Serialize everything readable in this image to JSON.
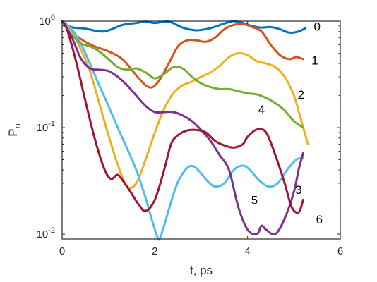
{
  "chart_data": {
    "type": "line",
    "xlabel": "t, ps",
    "ylabel": "P",
    "ylabel_subscript": "n",
    "xlim": [
      0,
      6
    ],
    "ylim": [
      0.009,
      1
    ],
    "yscale": "log",
    "grid": false,
    "x_ticks": [
      {
        "value": 0,
        "label": "0"
      },
      {
        "value": 2,
        "label": "2"
      },
      {
        "value": 4,
        "label": "4"
      },
      {
        "value": 6,
        "label": "6"
      }
    ],
    "y_ticks": [
      {
        "value": 1,
        "base": "10",
        "exp": "0"
      },
      {
        "value": 0.1,
        "base": "10",
        "exp": "-1"
      },
      {
        "value": 0.01,
        "base": "10",
        "exp": "-2"
      }
    ],
    "series": [
      {
        "name": "0",
        "color": "#0072bd",
        "label_at": [
          5.5,
          0.87
        ],
        "x": [
          0,
          0.2,
          0.5,
          0.9,
          1.3,
          1.6,
          1.8,
          2.0,
          2.3,
          2.6,
          2.9,
          3.2,
          3.5,
          3.7,
          3.9,
          4.1,
          4.3,
          4.5,
          4.7,
          4.9,
          5.1,
          5.25
        ],
        "y": [
          1.0,
          0.88,
          0.85,
          0.8,
          0.92,
          0.96,
          0.99,
          0.96,
          0.99,
          0.87,
          0.82,
          0.86,
          0.95,
          1.0,
          0.96,
          0.9,
          0.87,
          0.88,
          0.84,
          0.78,
          0.8,
          0.86
        ]
      },
      {
        "name": "1",
        "color": "#d95319",
        "label_at": [
          5.45,
          0.42
        ],
        "x": [
          0,
          0.2,
          0.4,
          0.7,
          1.0,
          1.3,
          1.6,
          1.8,
          1.95,
          2.1,
          2.3,
          2.5,
          2.7,
          2.9,
          3.1,
          3.3,
          3.5,
          3.7,
          3.9,
          4.1,
          4.3,
          4.5,
          4.7,
          4.9,
          5.05,
          5.2
        ],
        "y": [
          1.0,
          0.82,
          0.68,
          0.58,
          0.52,
          0.44,
          0.31,
          0.25,
          0.24,
          0.28,
          0.4,
          0.58,
          0.66,
          0.66,
          0.64,
          0.7,
          0.84,
          0.92,
          0.94,
          0.88,
          0.8,
          0.6,
          0.48,
          0.44,
          0.46,
          0.44
        ]
      },
      {
        "name": "2",
        "color": "#edb120",
        "label_at": [
          5.15,
          0.2
        ],
        "x": [
          0,
          0.2,
          0.4,
          0.6,
          0.8,
          1.0,
          1.2,
          1.4,
          1.6,
          1.8,
          2.0,
          2.2,
          2.4,
          2.6,
          2.8,
          3.0,
          3.2,
          3.4,
          3.6,
          3.8,
          4.0,
          4.2,
          4.4,
          4.6,
          4.8,
          5.0,
          5.15,
          5.3
        ],
        "y": [
          1.0,
          0.82,
          0.55,
          0.34,
          0.17,
          0.085,
          0.045,
          0.028,
          0.03,
          0.05,
          0.09,
          0.15,
          0.21,
          0.25,
          0.27,
          0.3,
          0.33,
          0.38,
          0.46,
          0.5,
          0.48,
          0.42,
          0.4,
          0.37,
          0.3,
          0.2,
          0.12,
          0.07
        ]
      },
      {
        "name": "3",
        "color": "#4dbeee",
        "label_at": [
          5.1,
          0.0255
        ],
        "x": [
          0,
          0.2,
          0.4,
          0.6,
          0.8,
          1.0,
          1.2,
          1.4,
          1.6,
          1.8,
          1.95,
          2.05,
          2.1,
          2.2,
          2.35,
          2.5,
          2.7,
          2.85,
          3.0,
          3.15,
          3.3,
          3.5,
          3.7,
          3.9,
          4.05,
          4.25,
          4.45,
          4.65,
          4.85,
          5.05,
          5.2
        ],
        "y": [
          1.0,
          0.85,
          0.62,
          0.4,
          0.25,
          0.16,
          0.1,
          0.064,
          0.04,
          0.022,
          0.013,
          0.0095,
          0.009,
          0.012,
          0.02,
          0.031,
          0.042,
          0.043,
          0.037,
          0.031,
          0.028,
          0.03,
          0.04,
          0.044,
          0.04,
          0.032,
          0.028,
          0.03,
          0.04,
          0.05,
          0.052
        ]
      },
      {
        "name": "4",
        "color": "#77ac30",
        "label_at": [
          4.3,
          0.145
        ],
        "x": [
          0,
          0.2,
          0.4,
          0.6,
          0.8,
          1.0,
          1.2,
          1.4,
          1.6,
          1.8,
          2.0,
          2.2,
          2.4,
          2.6,
          2.8,
          3.0,
          3.2,
          3.4,
          3.6,
          3.8,
          4.0,
          4.2,
          4.4,
          4.6,
          4.8,
          5.0,
          5.2
        ],
        "y": [
          1.0,
          0.75,
          0.62,
          0.58,
          0.52,
          0.44,
          0.37,
          0.35,
          0.36,
          0.33,
          0.29,
          0.32,
          0.37,
          0.36,
          0.3,
          0.26,
          0.24,
          0.23,
          0.23,
          0.22,
          0.21,
          0.205,
          0.19,
          0.17,
          0.145,
          0.115,
          0.1
        ]
      },
      {
        "name": "5",
        "color": "#7e2f8e",
        "label_at": [
          4.15,
          0.0205
        ],
        "x": [
          0,
          0.2,
          0.4,
          0.6,
          0.8,
          1.0,
          1.2,
          1.4,
          1.6,
          1.8,
          2.0,
          2.2,
          2.4,
          2.6,
          2.8,
          3.0,
          3.2,
          3.4,
          3.6,
          3.8,
          4.0,
          4.2,
          4.3,
          4.4,
          4.6,
          4.8,
          5.0,
          5.1,
          5.2
        ],
        "y": [
          1.0,
          0.72,
          0.45,
          0.36,
          0.35,
          0.34,
          0.3,
          0.25,
          0.2,
          0.16,
          0.14,
          0.14,
          0.14,
          0.13,
          0.115,
          0.095,
          0.075,
          0.055,
          0.04,
          0.018,
          0.011,
          0.01,
          0.012,
          0.011,
          0.01,
          0.014,
          0.025,
          0.04,
          0.058
        ]
      },
      {
        "name": "6",
        "color": "#a2142f",
        "label_at": [
          5.55,
          0.0135
        ],
        "x": [
          0,
          0.1,
          0.3,
          0.5,
          0.7,
          0.9,
          1.05,
          1.2,
          1.35,
          1.5,
          1.65,
          1.8,
          2.0,
          2.2,
          2.35,
          2.5,
          2.7,
          2.9,
          3.1,
          3.3,
          3.5,
          3.7,
          3.9,
          4.0,
          4.2,
          4.4,
          4.6,
          4.8,
          4.95,
          5.1,
          5.2
        ],
        "y": [
          1.0,
          0.85,
          0.42,
          0.18,
          0.08,
          0.042,
          0.033,
          0.036,
          0.03,
          0.024,
          0.019,
          0.0165,
          0.021,
          0.04,
          0.07,
          0.085,
          0.094,
          0.095,
          0.09,
          0.075,
          0.068,
          0.065,
          0.07,
          0.082,
          0.096,
          0.09,
          0.055,
          0.03,
          0.018,
          0.016,
          0.021
        ]
      }
    ]
  }
}
